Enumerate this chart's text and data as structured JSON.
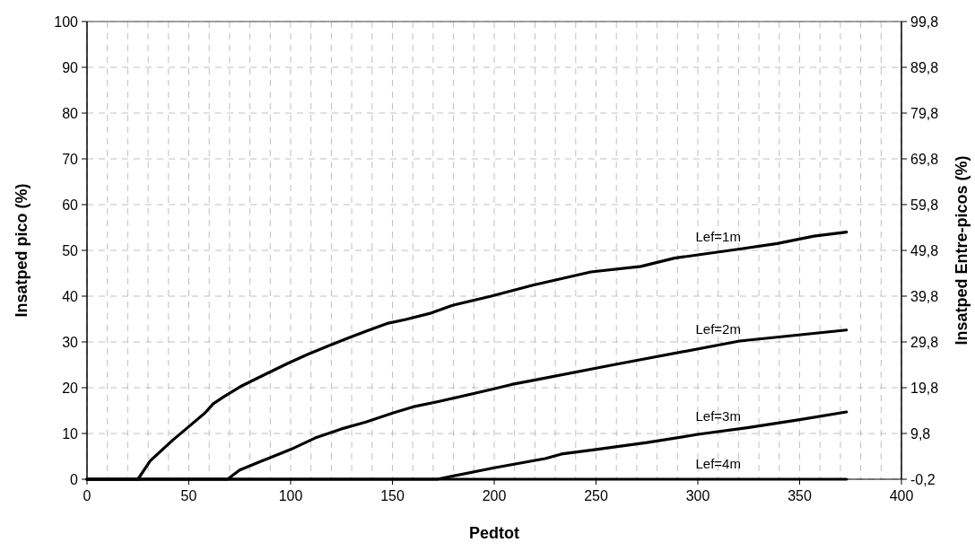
{
  "chart_data": {
    "type": "line",
    "xlabel": "Pedtot",
    "ylabel": "Insatped pico (%)",
    "y2label": "Insatped Entre-picos (%)",
    "xlim": [
      0,
      400
    ],
    "ylim": [
      0,
      100
    ],
    "y2lim": [
      -0.2,
      99.8
    ],
    "xticks": [
      0,
      {
        "value": 10,
        "label": null
      },
      {
        "value": 20,
        "label": null
      },
      {
        "value": 30,
        "label": null
      },
      {
        "value": 40,
        "label": null
      },
      50,
      {
        "value": 60,
        "label": null
      },
      {
        "value": 70,
        "label": null
      },
      {
        "value": 80,
        "label": null
      },
      {
        "value": 90,
        "label": null
      },
      100,
      {
        "value": 110,
        "label": null
      },
      {
        "value": 120,
        "label": null
      },
      {
        "value": 130,
        "label": null
      },
      {
        "value": 140,
        "label": null
      },
      150,
      {
        "value": 160,
        "label": null
      },
      {
        "value": 170,
        "label": null
      },
      {
        "value": 180,
        "label": null
      },
      {
        "value": 190,
        "label": null
      },
      200,
      {
        "value": 210,
        "label": null
      },
      {
        "value": 220,
        "label": null
      },
      {
        "value": 230,
        "label": null
      },
      {
        "value": 240,
        "label": null
      },
      250,
      {
        "value": 260,
        "label": null
      },
      {
        "value": 270,
        "label": null
      },
      {
        "value": 280,
        "label": null
      },
      {
        "value": 290,
        "label": null
      },
      300,
      {
        "value": 310,
        "label": null
      },
      {
        "value": 320,
        "label": null
      },
      {
        "value": 330,
        "label": null
      },
      {
        "value": 340,
        "label": null
      },
      350,
      {
        "value": 360,
        "label": null
      },
      {
        "value": 370,
        "label": null
      },
      {
        "value": 380,
        "label": null
      },
      {
        "value": 390,
        "label": null
      },
      400
    ],
    "yticks": [
      0,
      10,
      20,
      30,
      40,
      50,
      60,
      70,
      80,
      90,
      100
    ],
    "y2ticks": [
      {
        "value": -0.2,
        "label": "-0,2"
      },
      {
        "value": 9.8,
        "label": "9,8"
      },
      {
        "value": 19.8,
        "label": "19,8"
      },
      {
        "value": 29.8,
        "label": "29,8"
      },
      {
        "value": 39.8,
        "label": "39,8"
      },
      {
        "value": 49.8,
        "label": "49,8"
      },
      {
        "value": 59.8,
        "label": "59,8"
      },
      {
        "value": 69.8,
        "label": "69,8"
      },
      {
        "value": 79.8,
        "label": "79,8"
      },
      {
        "value": 89.8,
        "label": "89,8"
      },
      {
        "value": 99.8,
        "label": "99,8"
      }
    ],
    "grid": true,
    "marker": "none",
    "line_style": "solid",
    "series": [
      {
        "name": "Lef=1m",
        "color": "#000000",
        "x": [
          0,
          25,
          31,
          42,
          50,
          58,
          62,
          67.5,
          76,
          86.5,
          98.5,
          108.5,
          119,
          129,
          138,
          148,
          156.5,
          169,
          179.5,
          198.5,
          219,
          247.5,
          272,
          288.5,
          320.5,
          339,
          357,
          373
        ],
        "values": [
          0,
          0,
          4,
          8.5,
          11.5,
          14.5,
          16.5,
          18.1,
          20.4,
          22.7,
          25.3,
          27.3,
          29.2,
          31,
          32.5,
          34.1,
          34.9,
          36.3,
          38,
          40,
          42.4,
          45.3,
          46.5,
          48.3,
          50.3,
          51.5,
          53.1,
          54
        ]
      },
      {
        "name": "Lef=2m",
        "color": "#000000",
        "x": [
          0,
          69,
          75,
          86,
          100,
          112,
          125,
          137,
          150.5,
          160,
          173,
          198.5,
          208.5,
          219,
          258.5,
          320.5,
          373
        ],
        "values": [
          0,
          0,
          2,
          4,
          6.5,
          9,
          11,
          12.5,
          14.5,
          15.8,
          17,
          19.6,
          20.7,
          21.6,
          25,
          30.2,
          32.6
        ]
      },
      {
        "name": "Lef=3m",
        "color": "#000000",
        "x": [
          0,
          172,
          200,
          225,
          233,
          250,
          275,
          300,
          325,
          350,
          373
        ],
        "values": [
          0,
          0,
          2.5,
          4.5,
          5.5,
          6.5,
          8,
          9.8,
          11.3,
          13,
          14.7
        ]
      },
      {
        "name": "Lef=4m",
        "color": "#000000",
        "x": [
          0,
          373
        ],
        "values": [
          0,
          0
        ]
      }
    ]
  }
}
